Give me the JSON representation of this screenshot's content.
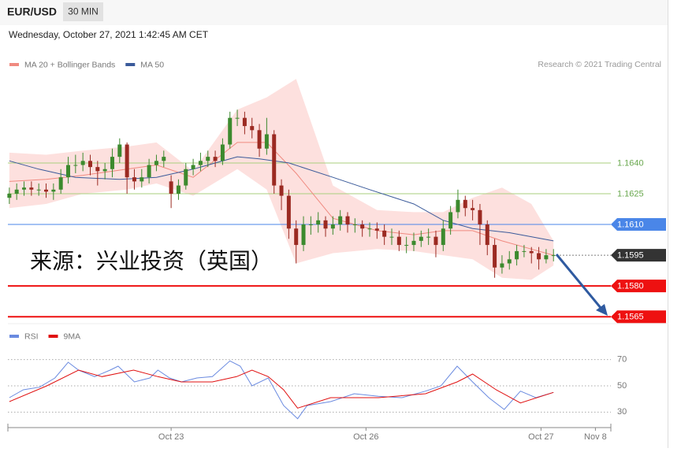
{
  "header": {
    "symbol": "EUR/USD",
    "interval": "30 MIN",
    "timestamp": "Wednesday, October 27, 2021 1:42:45 AM CET"
  },
  "chart_data": [
    {
      "type": "candlestick",
      "source": "Research © 2021 Trading Central",
      "annotation": "来源：兴业投资（英国）",
      "xlim": [
        -0.2,
        81.8
      ],
      "ylim": [
        1.1562,
        1.1683
      ],
      "up_color": "#3c8a2e",
      "down_color": "#9b2a22",
      "candles": {
        "open": [
          1.1623,
          1.1625,
          1.1627,
          1.1628,
          1.1627,
          1.1627,
          1.1626,
          1.1627,
          1.1633,
          1.1639,
          1.1639,
          1.1641,
          1.1638,
          1.1636,
          1.1637,
          1.1643,
          1.1649,
          1.1633,
          1.1631,
          1.1633,
          1.1639,
          1.1641,
          1.1631,
          1.1625,
          1.1629,
          1.1637,
          1.1639,
          1.1641,
          1.1643,
          1.1641,
          1.1649,
          1.1662,
          1.1662,
          1.1658,
          1.1656,
          1.1647,
          1.1654,
          1.1629,
          1.1624,
          1.1608,
          1.16,
          1.161,
          1.161,
          1.1612,
          1.1608,
          1.161,
          1.1614,
          1.161,
          1.161,
          1.1608,
          1.1608,
          1.1607,
          1.1604,
          1.1604,
          1.16,
          1.16,
          1.1602,
          1.1604,
          1.1604,
          1.16,
          1.1608,
          1.1616,
          1.1622,
          1.1618,
          1.1617,
          1.161,
          1.16,
          1.1589,
          1.1591,
          1.1593,
          1.1597,
          1.1597,
          1.1596,
          1.1593,
          1.1595
        ],
        "high": [
          1.1628,
          1.163,
          1.1631,
          1.1631,
          1.163,
          1.163,
          1.163,
          1.1637,
          1.1643,
          1.1644,
          1.1645,
          1.1644,
          1.1641,
          1.164,
          1.1647,
          1.1652,
          1.165,
          1.1637,
          1.1637,
          1.1642,
          1.1644,
          1.1646,
          1.1634,
          1.1632,
          1.164,
          1.1642,
          1.1645,
          1.1646,
          1.1646,
          1.1652,
          1.1665,
          1.1666,
          1.1665,
          1.1662,
          1.1659,
          1.1662,
          1.1656,
          1.1632,
          1.1627,
          1.1612,
          1.1614,
          1.1614,
          1.1616,
          1.1614,
          1.1614,
          1.1617,
          1.1616,
          1.1613,
          1.1612,
          1.1611,
          1.1611,
          1.161,
          1.1608,
          1.1607,
          1.1604,
          1.1606,
          1.1607,
          1.1608,
          1.1607,
          1.1612,
          1.1619,
          1.1627,
          1.1624,
          1.1622,
          1.162,
          1.1612,
          1.1603,
          1.1595,
          1.1597,
          1.16,
          1.16,
          1.1599,
          1.1599,
          1.1598,
          1.1598
        ],
        "low": [
          1.162,
          1.1622,
          1.1624,
          1.1624,
          1.1624,
          1.1623,
          1.1622,
          1.1625,
          1.163,
          1.1635,
          1.1636,
          1.1634,
          1.1629,
          1.1632,
          1.1633,
          1.164,
          1.1625,
          1.1627,
          1.1628,
          1.163,
          1.1636,
          1.1638,
          1.1618,
          1.1622,
          1.1627,
          1.1634,
          1.1636,
          1.1638,
          1.1638,
          1.1639,
          1.1647,
          1.1658,
          1.1654,
          1.1652,
          1.1643,
          1.1644,
          1.1625,
          1.1617,
          1.1603,
          1.1591,
          1.1597,
          1.1605,
          1.1606,
          1.1604,
          1.1605,
          1.1607,
          1.1606,
          1.1606,
          1.1604,
          1.1604,
          1.1603,
          1.16,
          1.16,
          1.1597,
          1.1596,
          1.1597,
          1.1599,
          1.16,
          1.1594,
          1.1597,
          1.1605,
          1.1613,
          1.1614,
          1.1612,
          1.16,
          1.1595,
          1.1584,
          1.1586,
          1.1588,
          1.159,
          1.1594,
          1.1591,
          1.1588,
          1.1591,
          1.1592
        ],
        "close": [
          1.1625,
          1.1627,
          1.1628,
          1.1627,
          1.1627,
          1.1626,
          1.1627,
          1.1633,
          1.1639,
          1.1639,
          1.1641,
          1.1638,
          1.1636,
          1.1637,
          1.1643,
          1.1649,
          1.1633,
          1.1631,
          1.1633,
          1.1639,
          1.1641,
          1.1643,
          1.1625,
          1.1629,
          1.1637,
          1.1639,
          1.1641,
          1.1643,
          1.1641,
          1.1649,
          1.1662,
          1.1662,
          1.1658,
          1.1656,
          1.1647,
          1.1654,
          1.1629,
          1.1624,
          1.1608,
          1.16,
          1.161,
          1.161,
          1.1612,
          1.1608,
          1.161,
          1.1614,
          1.161,
          1.161,
          1.1608,
          1.1608,
          1.1607,
          1.1604,
          1.1604,
          1.16,
          1.16,
          1.1602,
          1.1604,
          1.1604,
          1.16,
          1.1608,
          1.1616,
          1.1622,
          1.1618,
          1.1617,
          1.161,
          1.16,
          1.1589,
          1.1591,
          1.1593,
          1.1597,
          1.1597,
          1.1596,
          1.1593,
          1.1595,
          1.1595
        ]
      },
      "series": [
        {
          "name": "MA 20 + Bollinger Bands",
          "color": "#f08a80",
          "band_color": "#fde0de",
          "x": [
            0,
            5,
            10,
            16,
            20,
            25,
            31,
            35,
            39,
            44,
            50,
            55,
            59,
            63,
            67,
            71,
            74
          ],
          "values": [
            1.1631,
            1.1632,
            1.1634,
            1.1637,
            1.1639,
            1.1633,
            1.165,
            1.165,
            1.1635,
            1.1613,
            1.1607,
            1.1605,
            1.1607,
            1.1607,
            1.1602,
            1.1598,
            1.1595
          ],
          "upper": [
            1.1645,
            1.1644,
            1.1646,
            1.1648,
            1.165,
            1.1636,
            1.1666,
            1.1672,
            1.1681,
            1.1629,
            1.1617,
            1.1616,
            1.1616,
            1.1623,
            1.1628,
            1.162,
            1.1602
          ],
          "lower": [
            1.1618,
            1.162,
            1.1625,
            1.1627,
            1.163,
            1.1624,
            1.1637,
            1.1627,
            1.1591,
            1.1596,
            1.1598,
            1.1597,
            1.1595,
            1.1593,
            1.1584,
            1.1583,
            1.159
          ]
        },
        {
          "name": "MA 50",
          "color": "#3a5a9a",
          "x": [
            0,
            4,
            9,
            15,
            20,
            25,
            31,
            34,
            38,
            44,
            49,
            55,
            59,
            63,
            68,
            74
          ],
          "values": [
            1.1641,
            1.1637,
            1.1633,
            1.1632,
            1.1633,
            1.1637,
            1.1643,
            1.1642,
            1.164,
            1.1633,
            1.1627,
            1.162,
            1.1612,
            1.1608,
            1.1606,
            1.1602
          ]
        }
      ],
      "levels": [
        {
          "value": 1.164,
          "label": "1.1640",
          "color": "#a9cf7e",
          "text_color": "#6aa84f",
          "style": "solid",
          "boxed": false
        },
        {
          "value": 1.1625,
          "label": "1.1625",
          "color": "#a9cf7e",
          "text_color": "#6aa84f",
          "style": "solid",
          "boxed": false
        },
        {
          "value": 1.161,
          "label": "1.1610",
          "color": "#4a86e8",
          "text_color": "#ffffff",
          "style": "solid",
          "boxed": true
        },
        {
          "value": 1.1595,
          "label": "1.1595",
          "color": "#333333",
          "text_color": "#ffffff",
          "style": "dotted",
          "boxed": true
        },
        {
          "value": 1.158,
          "label": "1.1580",
          "color": "#ee1111",
          "text_color": "#ffffff",
          "style": "thick",
          "boxed": true
        },
        {
          "value": 1.1565,
          "label": "1.1565",
          "color": "#ee1111",
          "text_color": "#ffffff",
          "style": "thick",
          "boxed": true
        }
      ]
    },
    {
      "type": "line",
      "xlim": [
        -0.2,
        81.8
      ],
      "ylim": [
        20,
        86
      ],
      "yticks": [
        30,
        50,
        70
      ],
      "xticks": [
        {
          "value": 22,
          "label": "Oct 23"
        },
        {
          "value": 48.5,
          "label": "Oct 26"
        },
        {
          "value": 72.3,
          "label": "Oct 27"
        },
        {
          "value": 79.7,
          "label": "Nov 8"
        }
      ],
      "series": [
        {
          "name": "RSI",
          "color": "#6a8ae0",
          "x": [
            0,
            1.9,
            4.1,
            6.2,
            8,
            9.4,
            11.6,
            13.7,
            14.8,
            17,
            19.1,
            20.2,
            21.8,
            23.4,
            25.5,
            27.6,
            30,
            31.4,
            33,
            35.2,
            37.3,
            39.2,
            40.5,
            43.7,
            46.9,
            50.2,
            53.4,
            56.6,
            58.7,
            60.9,
            63,
            65.2,
            67.3,
            69.5,
            71.6,
            74
          ],
          "values": [
            41,
            47,
            49,
            56,
            68,
            62,
            57,
            62,
            65,
            53,
            56,
            62,
            56,
            53,
            56,
            57,
            69,
            65,
            50,
            56,
            35,
            25,
            35,
            38,
            44,
            42,
            41,
            46,
            50,
            65,
            53,
            41,
            32,
            46,
            41,
            45
          ]
        },
        {
          "name": "9MA",
          "color": "#e01010",
          "x": [
            0,
            5.1,
            9.4,
            12.6,
            16.9,
            20.2,
            23.4,
            27.6,
            30.9,
            33,
            35.2,
            37.3,
            39.2,
            43.7,
            50.2,
            56.6,
            60.9,
            63,
            66.2,
            69.5,
            74
          ],
          "values": [
            38,
            50,
            62,
            57,
            62,
            57,
            53,
            53,
            57,
            62,
            57,
            47,
            33,
            41,
            41,
            44,
            53,
            59,
            47,
            37,
            45
          ]
        }
      ]
    }
  ]
}
